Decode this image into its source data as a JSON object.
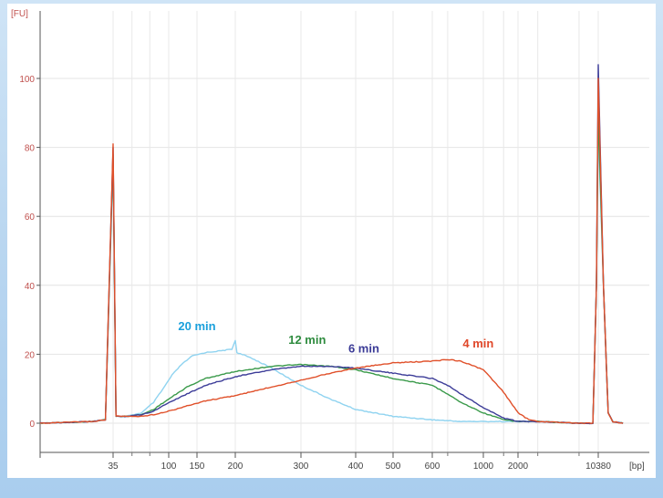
{
  "chart_data": {
    "type": "line",
    "title": "",
    "y_unit_label": "[FU]",
    "x_unit_label": "[bp]",
    "ylim": [
      -8,
      120
    ],
    "y_ticks": [
      0,
      20,
      40,
      60,
      80,
      100
    ],
    "x_ticks": [
      {
        "bp": 35,
        "label": "35"
      },
      {
        "bp": 100,
        "label": "100"
      },
      {
        "bp": 150,
        "label": "150"
      },
      {
        "bp": 200,
        "label": "200"
      },
      {
        "bp": 300,
        "label": "300"
      },
      {
        "bp": 400,
        "label": "400"
      },
      {
        "bp": 500,
        "label": "500"
      },
      {
        "bp": 600,
        "label": "600"
      },
      {
        "bp": 1000,
        "label": "1000"
      },
      {
        "bp": 2000,
        "label": "2000"
      },
      {
        "bp": 10380,
        "label": "10380"
      }
    ],
    "x_minor_ticks": [
      50,
      70,
      700,
      1500,
      3000,
      7000
    ],
    "grid": true,
    "marker_peaks": [
      {
        "bp": 35,
        "fu": 81
      },
      {
        "bp": 10380,
        "fu": 104
      }
    ],
    "series": [
      {
        "name": "20 min",
        "color": "#8fd3f0",
        "points": [
          [
            20,
            0
          ],
          [
            30,
            0.5
          ],
          [
            33,
            1
          ],
          [
            35,
            75
          ],
          [
            37,
            2
          ],
          [
            45,
            2
          ],
          [
            60,
            3
          ],
          [
            75,
            6
          ],
          [
            90,
            10
          ],
          [
            105,
            14
          ],
          [
            120,
            17
          ],
          [
            140,
            19.5
          ],
          [
            160,
            20.5
          ],
          [
            180,
            21
          ],
          [
            195,
            21.5
          ],
          [
            200,
            24
          ],
          [
            202,
            20.5
          ],
          [
            220,
            19
          ],
          [
            250,
            16
          ],
          [
            300,
            11
          ],
          [
            350,
            7
          ],
          [
            400,
            4
          ],
          [
            500,
            2
          ],
          [
            600,
            1
          ],
          [
            800,
            0.5
          ],
          [
            1500,
            0.5
          ],
          [
            3000,
            0.5
          ],
          [
            7000,
            0
          ],
          [
            9300,
            0
          ],
          [
            10000,
            40
          ],
          [
            10380,
            85
          ],
          [
            10700,
            40
          ],
          [
            11000,
            3
          ],
          [
            11300,
            0.5
          ],
          [
            12000,
            0
          ]
        ]
      },
      {
        "name": "12 min",
        "color": "#3a9a4a",
        "points": [
          [
            20,
            0
          ],
          [
            30,
            0.5
          ],
          [
            33,
            1
          ],
          [
            35,
            78
          ],
          [
            37,
            2
          ],
          [
            45,
            2
          ],
          [
            60,
            2.5
          ],
          [
            75,
            4
          ],
          [
            100,
            7
          ],
          [
            130,
            10.5
          ],
          [
            160,
            13
          ],
          [
            200,
            15
          ],
          [
            250,
            16.5
          ],
          [
            300,
            17
          ],
          [
            350,
            16.5
          ],
          [
            400,
            15.5
          ],
          [
            500,
            13
          ],
          [
            600,
            11
          ],
          [
            700,
            8.5
          ],
          [
            800,
            6
          ],
          [
            1000,
            3
          ],
          [
            1500,
            1
          ],
          [
            2000,
            0.5
          ],
          [
            3000,
            0.5
          ],
          [
            7000,
            0
          ],
          [
            9300,
            0
          ],
          [
            10000,
            40
          ],
          [
            10380,
            90
          ],
          [
            10700,
            40
          ],
          [
            11000,
            3
          ],
          [
            11300,
            0.5
          ],
          [
            12000,
            0
          ]
        ]
      },
      {
        "name": "6 min",
        "color": "#3c3c98",
        "points": [
          [
            20,
            0
          ],
          [
            30,
            0.5
          ],
          [
            33,
            1
          ],
          [
            35,
            80
          ],
          [
            37,
            2
          ],
          [
            45,
            2
          ],
          [
            60,
            2.5
          ],
          [
            75,
            3.5
          ],
          [
            100,
            6
          ],
          [
            130,
            8.5
          ],
          [
            160,
            11
          ],
          [
            200,
            13.5
          ],
          [
            250,
            15.5
          ],
          [
            300,
            16.5
          ],
          [
            350,
            16.5
          ],
          [
            400,
            16
          ],
          [
            500,
            14.5
          ],
          [
            600,
            13
          ],
          [
            700,
            11
          ],
          [
            800,
            8.5
          ],
          [
            1000,
            4.5
          ],
          [
            1500,
            1.5
          ],
          [
            2000,
            0.5
          ],
          [
            3000,
            0.5
          ],
          [
            7000,
            0
          ],
          [
            9300,
            0
          ],
          [
            10000,
            40
          ],
          [
            10380,
            104
          ],
          [
            10700,
            40
          ],
          [
            11000,
            3
          ],
          [
            11300,
            0.5
          ],
          [
            12000,
            0
          ]
        ]
      },
      {
        "name": "4 min",
        "color": "#e0502a",
        "points": [
          [
            20,
            0
          ],
          [
            30,
            0.5
          ],
          [
            33,
            1
          ],
          [
            35,
            81
          ],
          [
            37,
            2
          ],
          [
            45,
            2
          ],
          [
            60,
            2
          ],
          [
            75,
            2.5
          ],
          [
            100,
            3.5
          ],
          [
            130,
            5
          ],
          [
            160,
            6.5
          ],
          [
            200,
            8
          ],
          [
            250,
            10.5
          ],
          [
            300,
            12.5
          ],
          [
            350,
            14.5
          ],
          [
            400,
            16
          ],
          [
            500,
            17.5
          ],
          [
            600,
            18
          ],
          [
            700,
            18.5
          ],
          [
            800,
            18
          ],
          [
            1000,
            15.5
          ],
          [
            1500,
            9
          ],
          [
            2000,
            3
          ],
          [
            2500,
            1
          ],
          [
            3000,
            0.5
          ],
          [
            7000,
            0
          ],
          [
            9300,
            0
          ],
          [
            10000,
            40
          ],
          [
            10380,
            100
          ],
          [
            10700,
            40
          ],
          [
            11000,
            3
          ],
          [
            11300,
            0.5
          ],
          [
            12000,
            0
          ]
        ]
      }
    ],
    "annotations": [
      {
        "text": "20 min",
        "color": "#1aa0dc",
        "bp": 150,
        "fu": 27
      },
      {
        "text": "12 min",
        "color": "#2e8b3e",
        "bp": 310,
        "fu": 23
      },
      {
        "text": "6 min",
        "color": "#3a3a96",
        "bp": 420,
        "fu": 20.5
      },
      {
        "text": "4 min",
        "color": "#e0482a",
        "bp": 950,
        "fu": 22
      }
    ]
  }
}
